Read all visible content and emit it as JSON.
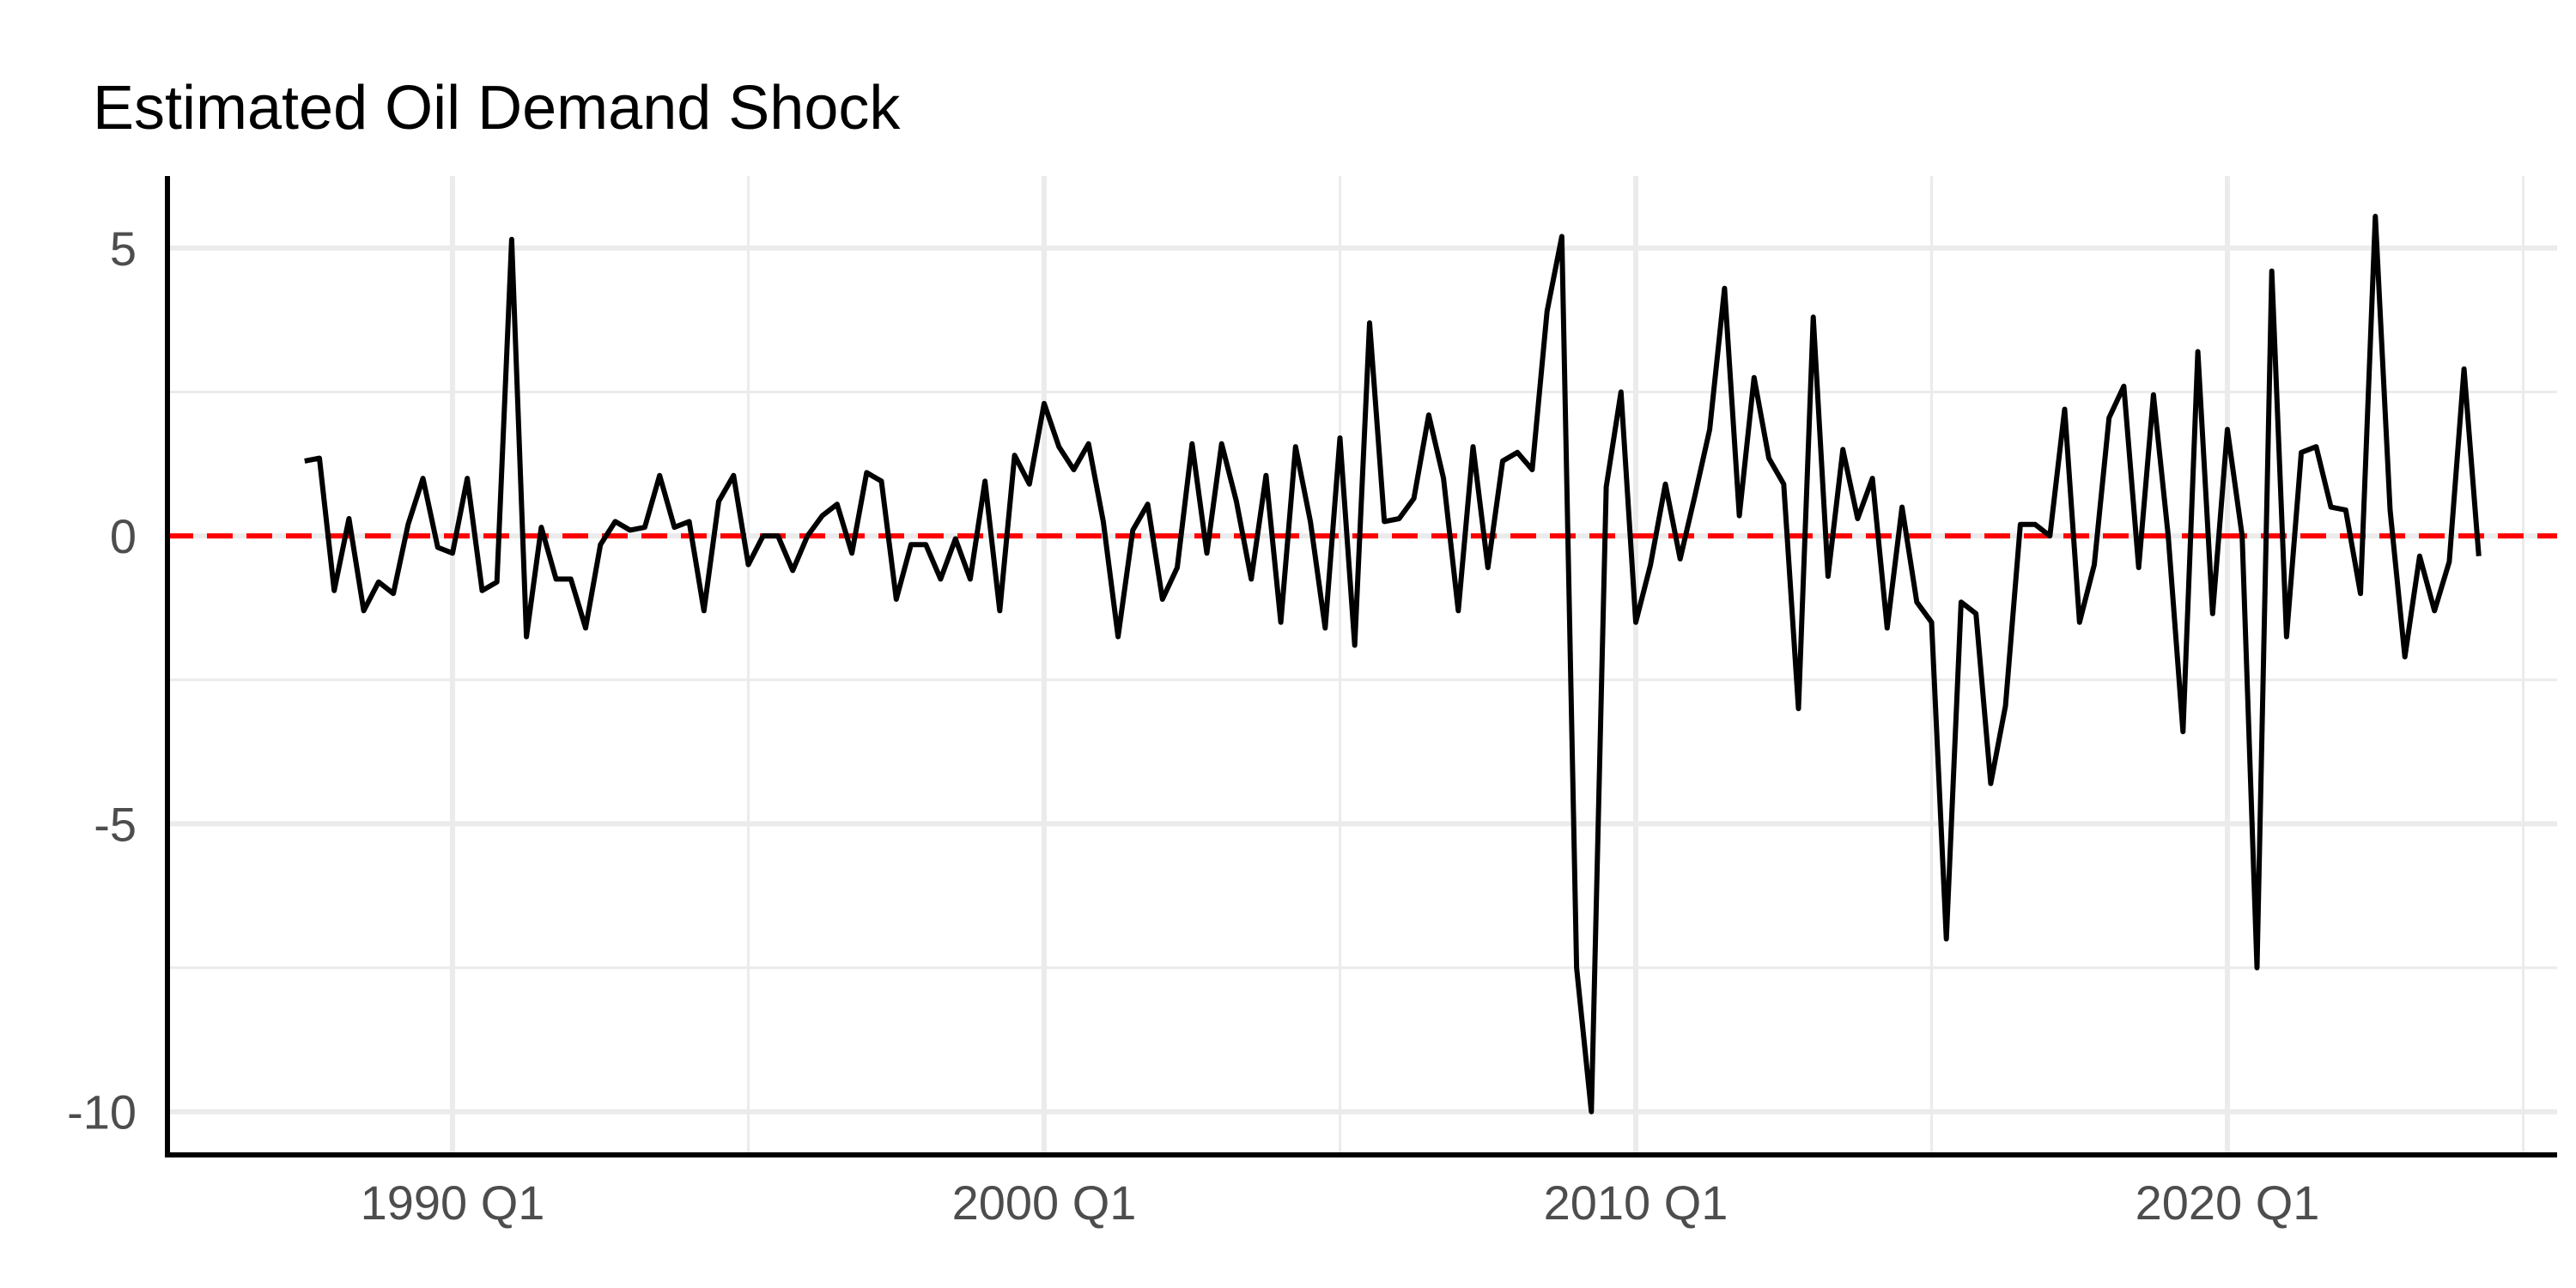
{
  "chart_data": {
    "type": "line",
    "title": "Estimated Oil Demand Shock",
    "xlabel": "",
    "ylabel": "",
    "x_start": "1987 Q3",
    "x_frequency": "quarterly",
    "x_ticks": [
      "1990 Q1",
      "2000 Q1",
      "2010 Q1",
      "2020 Q1"
    ],
    "y_ticks": [
      5,
      0,
      -5,
      -10
    ],
    "y_tick_labels": [
      "5",
      "0",
      "-5",
      "-10"
    ],
    "ylim": [
      -10.75,
      6.25
    ],
    "grid": true,
    "axes": "left and bottom lines",
    "reference_line": {
      "y": 0,
      "color": "#ff0000",
      "style": "dashed"
    },
    "series_color": "#000000",
    "series": [
      {
        "values": [
          1.3,
          1.35,
          -0.95,
          0.3,
          -1.3,
          -0.8,
          -1.0,
          0.2,
          1.0,
          -0.2,
          -0.3,
          1.0,
          -0.95,
          -0.8,
          5.15,
          -1.75,
          0.15,
          -0.75,
          -0.75,
          -1.6,
          -0.15,
          0.25,
          0.1,
          0.15,
          1.05,
          0.15,
          0.25,
          -1.3,
          0.6,
          1.05,
          -0.5,
          0.0,
          0.0,
          -0.6,
          0.0,
          0.35,
          0.55,
          -0.3,
          1.1,
          0.95,
          -1.1,
          -0.15,
          -0.15,
          -0.75,
          -0.05,
          -0.75,
          0.95,
          -1.3,
          1.4,
          0.9,
          2.3,
          1.55,
          1.15,
          1.6,
          0.25,
          -1.75,
          0.1,
          0.55,
          -1.1,
          -0.55,
          1.6,
          -0.3,
          1.6,
          0.6,
          -0.75,
          1.05,
          -1.5,
          1.55,
          0.25,
          -1.6,
          1.7,
          -1.9,
          3.7,
          0.25,
          0.3,
          0.65,
          2.1,
          1.0,
          -1.3,
          1.55,
          -0.55,
          1.3,
          1.45,
          1.15,
          3.9,
          5.2,
          -7.5,
          -10.0,
          0.85,
          2.5,
          -1.5,
          -0.5,
          0.9,
          -0.4,
          0.7,
          1.85,
          4.3,
          0.35,
          2.75,
          1.35,
          0.9,
          -3.0,
          3.8,
          -0.7,
          1.5,
          0.3,
          1.0,
          -1.6,
          0.5,
          -1.15,
          -1.5,
          -7.0,
          -1.15,
          -1.35,
          -4.3,
          -2.95,
          0.2,
          0.2,
          0.0,
          2.2,
          -1.5,
          -0.5,
          2.05,
          2.6,
          -0.55,
          2.45,
          0.0,
          -3.4,
          3.2,
          -1.35,
          1.85,
          0.0,
          -7.5,
          4.6,
          -1.75,
          1.45,
          1.55,
          0.5,
          0.45,
          -1.0,
          5.55,
          0.45,
          -2.1,
          -0.35,
          -1.3,
          -0.45,
          2.9,
          -0.35
        ]
      }
    ]
  }
}
